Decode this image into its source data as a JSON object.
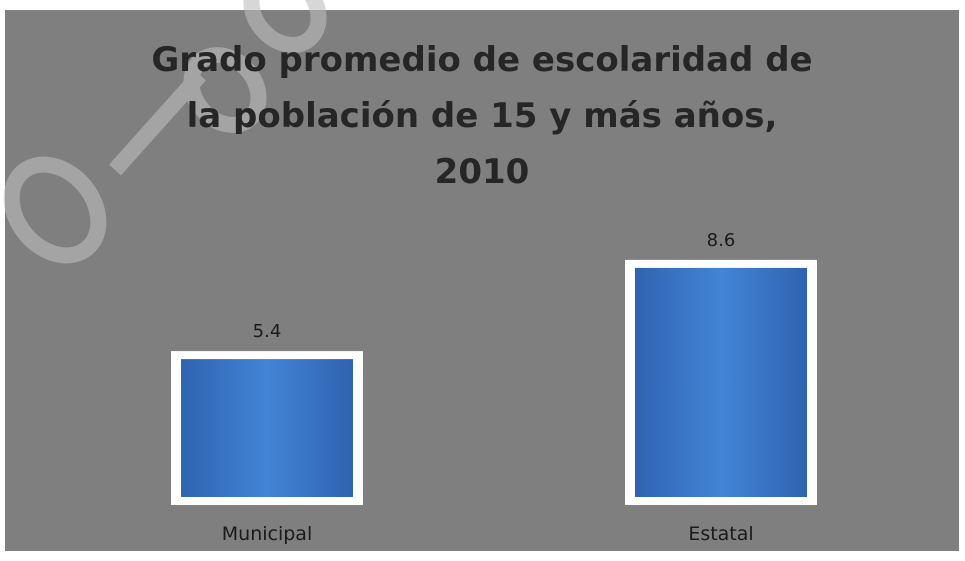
{
  "chart_data": {
    "type": "bar",
    "title": "Grado promedio de escolaridad de\nla población de 15 y más años,\n2010",
    "categories": [
      "Municipal",
      "Estatal"
    ],
    "values": [
      5.4,
      8.6
    ],
    "value_labels": [
      "5.4",
      "8.6"
    ],
    "xlabel": "",
    "ylabel": "",
    "grid": false,
    "legend": "none"
  },
  "colors": {
    "background": "#7f7f7f",
    "bar_fill": "#3f7ccd",
    "bar_border": "#ffffff",
    "text": "#1a1a1a"
  },
  "watermark": {
    "icon": "faded-watermark-text"
  }
}
